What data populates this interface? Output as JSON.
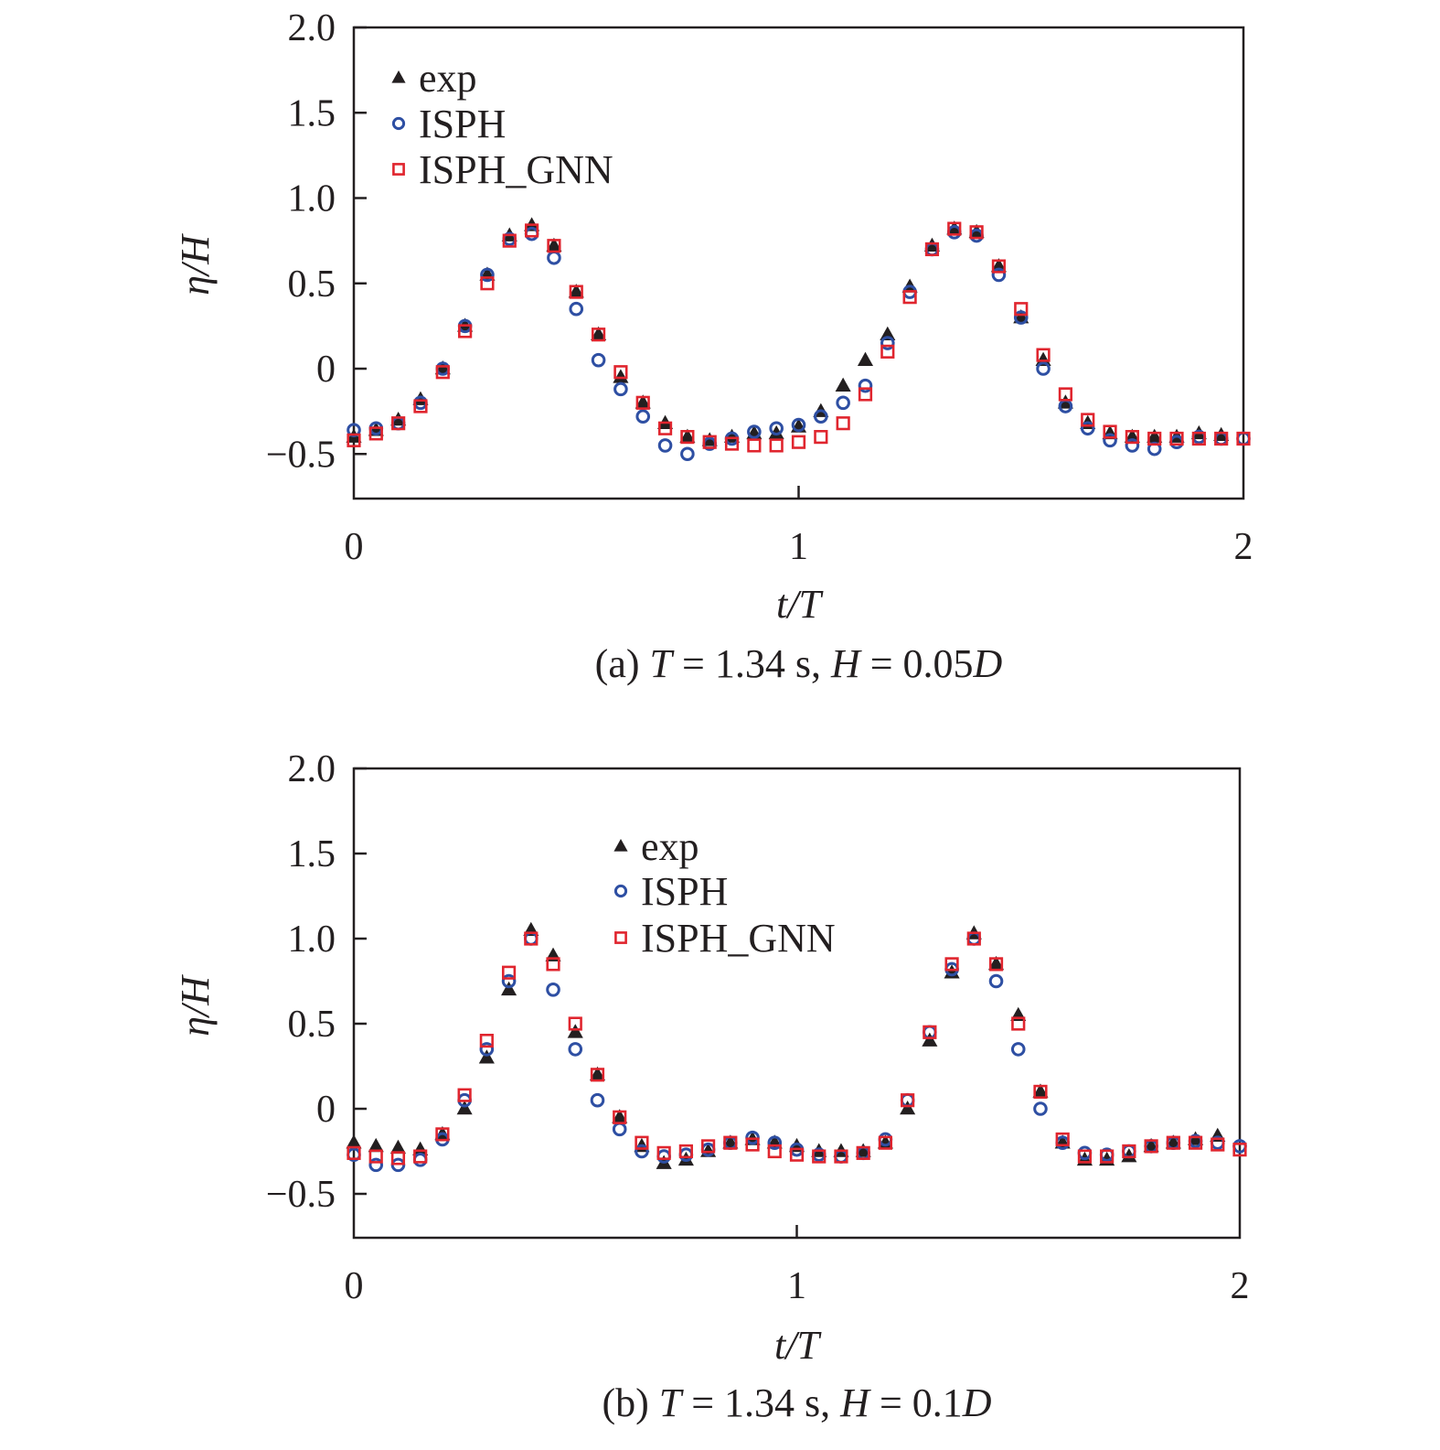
{
  "colors": {
    "exp": "#231f20",
    "isph": "#2e4fa3",
    "gnn": "#e0252e",
    "axis": "#231f20"
  },
  "chart_data": [
    {
      "type": "scatter",
      "id": "a",
      "caption_parts": [
        {
          "text": "(a) ",
          "italic": false
        },
        {
          "text": "T",
          "italic": true
        },
        {
          "text": " = 1.34 s, ",
          "italic": false
        },
        {
          "text": "H",
          "italic": true
        },
        {
          "text": " = 0.05",
          "italic": false
        },
        {
          "text": "D",
          "italic": true
        }
      ],
      "xlabel": "t/T",
      "ylabel": "η/H",
      "xlim": [
        0,
        2
      ],
      "ylim": [
        -0.76,
        2.0
      ],
      "xticks": [
        0,
        1,
        2
      ],
      "xtick_labels": [
        "0",
        "1",
        "2"
      ],
      "yticks": [
        -0.5,
        0,
        0.5,
        1.0,
        1.5,
        2.0
      ],
      "ytick_labels": [
        "−0.5",
        "0",
        "0.5",
        "1.0",
        "1.5",
        "2.0"
      ],
      "legend_position": "top-left",
      "x": [
        0,
        0.05,
        0.1,
        0.15,
        0.2,
        0.25,
        0.3,
        0.35,
        0.4,
        0.45,
        0.5,
        0.55,
        0.6,
        0.65,
        0.7,
        0.75,
        0.8,
        0.85,
        0.9,
        0.95,
        1.0,
        1.05,
        1.1,
        1.15,
        1.2,
        1.25,
        1.3,
        1.35,
        1.4,
        1.45,
        1.5,
        1.55,
        1.6,
        1.65,
        1.7,
        1.75,
        1.8,
        1.85,
        1.9,
        1.95,
        2.0
      ],
      "series": [
        {
          "name": "exp",
          "marker": "triangle",
          "values": [
            -0.4,
            -0.36,
            -0.3,
            -0.18,
            0.0,
            0.25,
            0.55,
            0.78,
            0.84,
            0.72,
            0.45,
            0.2,
            -0.05,
            -0.2,
            -0.32,
            -0.4,
            -0.42,
            -0.4,
            -0.38,
            -0.38,
            -0.34,
            -0.25,
            -0.1,
            0.05,
            0.2,
            0.48,
            0.72,
            0.82,
            0.8,
            0.6,
            0.3,
            0.05,
            -0.2,
            -0.32,
            -0.38,
            -0.4,
            -0.4,
            -0.4,
            -0.38,
            -0.39,
            -0.4
          ]
        },
        {
          "name": "ISPH",
          "marker": "circle",
          "values": [
            -0.36,
            -0.35,
            -0.32,
            -0.2,
            0.0,
            0.25,
            0.55,
            0.76,
            0.79,
            0.65,
            0.35,
            0.05,
            -0.12,
            -0.28,
            -0.45,
            -0.5,
            -0.44,
            -0.41,
            -0.37,
            -0.35,
            -0.33,
            -0.28,
            -0.2,
            -0.1,
            0.15,
            0.45,
            0.7,
            0.8,
            0.78,
            0.55,
            0.3,
            0.0,
            -0.22,
            -0.35,
            -0.42,
            -0.45,
            -0.47,
            -0.43,
            -0.4,
            -0.41,
            -0.41
          ]
        },
        {
          "name": "ISPH_GNN",
          "marker": "square",
          "values": [
            -0.42,
            -0.38,
            -0.32,
            -0.22,
            -0.02,
            0.22,
            0.5,
            0.75,
            0.81,
            0.72,
            0.45,
            0.2,
            -0.02,
            -0.2,
            -0.35,
            -0.4,
            -0.43,
            -0.44,
            -0.45,
            -0.45,
            -0.43,
            -0.4,
            -0.32,
            -0.15,
            0.1,
            0.42,
            0.7,
            0.82,
            0.8,
            0.6,
            0.35,
            0.08,
            -0.15,
            -0.3,
            -0.37,
            -0.4,
            -0.41,
            -0.41,
            -0.41,
            -0.41,
            -0.41
          ]
        }
      ]
    },
    {
      "type": "scatter",
      "id": "b",
      "caption_parts": [
        {
          "text": "(b) ",
          "italic": false
        },
        {
          "text": "T",
          "italic": true
        },
        {
          "text": " = 1.34 s, ",
          "italic": false
        },
        {
          "text": "H",
          "italic": true
        },
        {
          "text": " = 0.1",
          "italic": false
        },
        {
          "text": "D",
          "italic": true
        }
      ],
      "xlabel": "t/T",
      "ylabel": "η/H",
      "xlim": [
        0,
        2
      ],
      "ylim": [
        -0.76,
        2.0
      ],
      "xticks": [
        0,
        1,
        2
      ],
      "xtick_labels": [
        "0",
        "1",
        "2"
      ],
      "yticks": [
        -0.5,
        0,
        0.5,
        1.0,
        1.5,
        2.0
      ],
      "ytick_labels": [
        "−0.5",
        "0",
        "0.5",
        "1.0",
        "1.5",
        "2.0"
      ],
      "legend_position": "top-center",
      "x": [
        0,
        0.05,
        0.1,
        0.15,
        0.2,
        0.25,
        0.3,
        0.35,
        0.4,
        0.45,
        0.5,
        0.55,
        0.6,
        0.65,
        0.7,
        0.75,
        0.8,
        0.85,
        0.9,
        0.95,
        1.0,
        1.05,
        1.1,
        1.15,
        1.2,
        1.25,
        1.3,
        1.35,
        1.4,
        1.45,
        1.5,
        1.55,
        1.6,
        1.65,
        1.7,
        1.75,
        1.8,
        1.85,
        1.9,
        1.95,
        2.0
      ],
      "series": [
        {
          "name": "exp",
          "marker": "triangle",
          "values": [
            -0.2,
            -0.22,
            -0.23,
            -0.24,
            -0.15,
            0.0,
            0.3,
            0.7,
            1.05,
            0.9,
            0.45,
            0.2,
            -0.05,
            -0.22,
            -0.32,
            -0.3,
            -0.25,
            -0.2,
            -0.18,
            -0.2,
            -0.22,
            -0.25,
            -0.25,
            -0.25,
            -0.2,
            0.0,
            0.4,
            0.8,
            1.03,
            0.85,
            0.55,
            0.1,
            -0.2,
            -0.3,
            -0.3,
            -0.28,
            -0.22,
            -0.2,
            -0.18,
            -0.16,
            -0.17
          ]
        },
        {
          "name": "ISPH",
          "marker": "circle",
          "values": [
            -0.27,
            -0.33,
            -0.33,
            -0.3,
            -0.18,
            0.05,
            0.35,
            0.75,
            1.0,
            0.7,
            0.35,
            0.05,
            -0.12,
            -0.25,
            -0.28,
            -0.27,
            -0.24,
            -0.2,
            -0.17,
            -0.2,
            -0.24,
            -0.27,
            -0.28,
            -0.26,
            -0.18,
            0.05,
            0.45,
            0.82,
            1.0,
            0.75,
            0.35,
            0.0,
            -0.2,
            -0.26,
            -0.27,
            -0.25,
            -0.22,
            -0.2,
            -0.19,
            -0.2,
            -0.22
          ]
        },
        {
          "name": "ISPH_GNN",
          "marker": "square",
          "values": [
            -0.26,
            -0.28,
            -0.29,
            -0.28,
            -0.15,
            0.08,
            0.4,
            0.8,
            1.0,
            0.85,
            0.5,
            0.2,
            -0.05,
            -0.2,
            -0.26,
            -0.25,
            -0.22,
            -0.2,
            -0.21,
            -0.25,
            -0.27,
            -0.28,
            -0.28,
            -0.26,
            -0.2,
            0.05,
            0.45,
            0.85,
            1.0,
            0.85,
            0.5,
            0.1,
            -0.18,
            -0.28,
            -0.28,
            -0.25,
            -0.22,
            -0.2,
            -0.2,
            -0.21,
            -0.24
          ]
        }
      ]
    }
  ]
}
